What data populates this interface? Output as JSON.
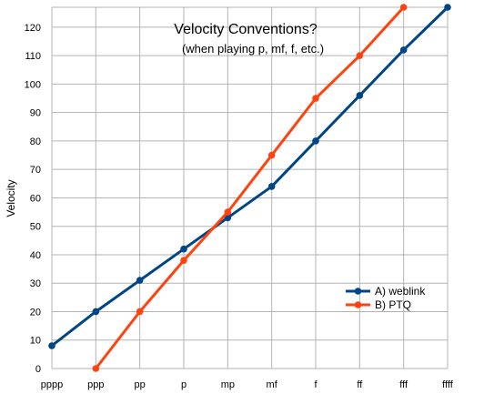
{
  "chart_data": {
    "type": "line",
    "title": "Velocity Conventions?",
    "subtitle": "(when playing p, mf, f, etc.)",
    "xlabel": "",
    "ylabel": "Velocity",
    "categories": [
      "pppp",
      "ppp",
      "pp",
      "p",
      "mp",
      "mf",
      "f",
      "ff",
      "fff",
      "ffff"
    ],
    "ylim": [
      0,
      127
    ],
    "yticks": [
      0,
      10,
      20,
      30,
      40,
      50,
      60,
      70,
      80,
      90,
      100,
      110,
      120
    ],
    "grid": true,
    "legend_position": "lower-right",
    "series": [
      {
        "name": "A) weblink",
        "color": "#004586",
        "values": [
          8,
          20,
          31,
          42,
          53,
          64,
          80,
          96,
          112,
          127
        ]
      },
      {
        "name": "B) PTQ",
        "color": "#ff420e",
        "values": [
          null,
          0,
          20,
          38,
          55,
          75,
          95,
          110,
          127,
          null
        ]
      }
    ]
  }
}
